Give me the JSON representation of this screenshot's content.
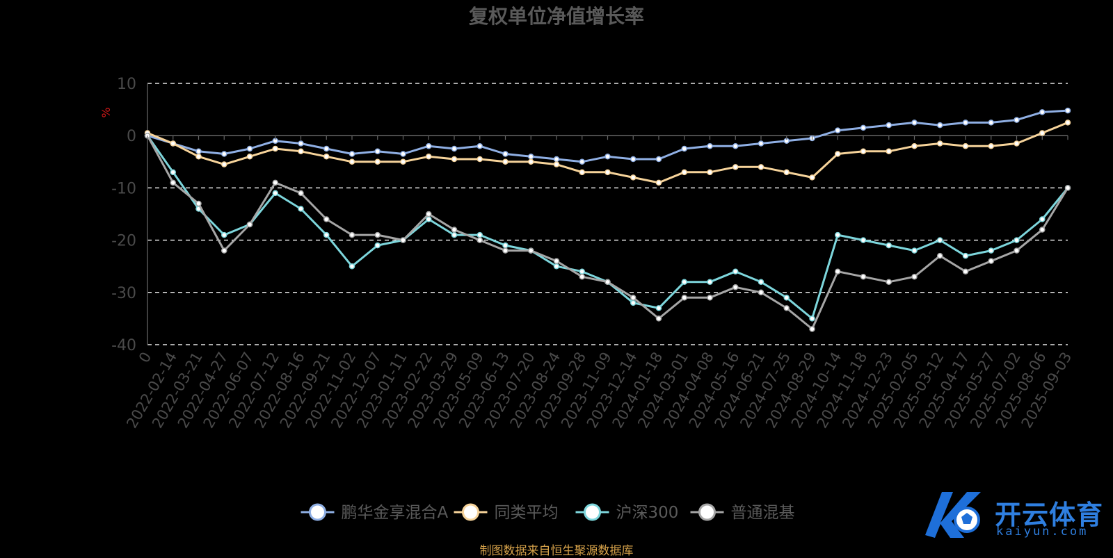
{
  "chart_data": {
    "type": "line",
    "title": "复权单位净值增长率",
    "ylabel": "%",
    "ylim": [
      -40,
      10
    ],
    "yticks": [
      10,
      0,
      -10,
      -20,
      -30,
      -40
    ],
    "grid": true,
    "legend_position": "bottom-center",
    "x_tick_labels": [
      "0",
      "2022-02-14",
      "2022-03-21",
      "2022-04-27",
      "2022-06-07",
      "2022-07-12",
      "2022-08-16",
      "2022-09-21",
      "2022-11-02",
      "2022-12-07",
      "2023-01-11",
      "2023-02-22",
      "2023-03-29",
      "2023-05-09",
      "2023-06-13",
      "2023-07-20",
      "2023-08-24",
      "2023-09-28",
      "2023-11-09",
      "2023-12-14",
      "2024-01-18",
      "2024-03-01",
      "2024-04-08",
      "2024-05-16",
      "2024-06-21",
      "2024-07-25",
      "2024-08-29",
      "2024-10-14",
      "2024-11-18",
      "2024-12-23",
      "2025-02-05",
      "2025-03-12",
      "2025-04-17",
      "2025-05-27",
      "2025-07-02",
      "2025-08-06",
      "2025-09-03"
    ],
    "series": [
      {
        "name": "鹏华金享混合A",
        "color": "#8fafe4",
        "values": [
          0,
          -1.5,
          -3,
          -3.5,
          -2.5,
          -1,
          -1.5,
          -2.5,
          -3.5,
          -3,
          -3.5,
          -2,
          -2.5,
          -2,
          -3.5,
          -4,
          -4.5,
          -5,
          -4,
          -4.5,
          -4.5,
          -2.5,
          -2,
          -2,
          -1.5,
          -1,
          -0.5,
          1,
          1.5,
          2,
          2.5,
          2,
          2.5,
          2.5,
          3,
          4.5,
          4.8
        ]
      },
      {
        "name": "同类平均",
        "color": "#f6d39a",
        "values": [
          0.5,
          -1.5,
          -4,
          -5.5,
          -4,
          -2.5,
          -3,
          -4,
          -5,
          -5,
          -5,
          -4,
          -4.5,
          -4.5,
          -5,
          -5,
          -5.5,
          -7,
          -7,
          -8,
          -9,
          -7,
          -7,
          -6,
          -6,
          -7,
          -8,
          -3.5,
          -3,
          -3,
          -2,
          -1.5,
          -2,
          -2,
          -1.5,
          0.5,
          2.5
        ]
      },
      {
        "name": "沪深300",
        "color": "#7dd6dc",
        "values": [
          0,
          -7,
          -14,
          -19,
          -17,
          -11,
          -14,
          -19,
          -25,
          -21,
          -20,
          -16,
          -19,
          -19,
          -21,
          -22,
          -25,
          -26,
          -28,
          -32,
          -33,
          -28,
          -28,
          -26,
          -28,
          -31,
          -35,
          -19,
          -20,
          -21,
          -22,
          -20,
          -23,
          -22,
          -20,
          -16,
          -10
        ]
      },
      {
        "name": "普通混基",
        "color": "#a6a6a6",
        "values": [
          0,
          -9,
          -13,
          -22,
          -17,
          -9,
          -11,
          -16,
          -19,
          -19,
          -20,
          -15,
          -18,
          -20,
          -22,
          -22,
          -24,
          -27,
          -28,
          -31,
          -35,
          -31,
          -31,
          -29,
          -30,
          -33,
          -37,
          -26,
          -27,
          -28,
          -27,
          -23,
          -26,
          -24,
          -22,
          -18,
          -10
        ]
      }
    ]
  },
  "source_note": "制图数据来自恒生聚源数据库",
  "logo": {
    "name": "开云体育",
    "sub": "kaiyun.com"
  }
}
